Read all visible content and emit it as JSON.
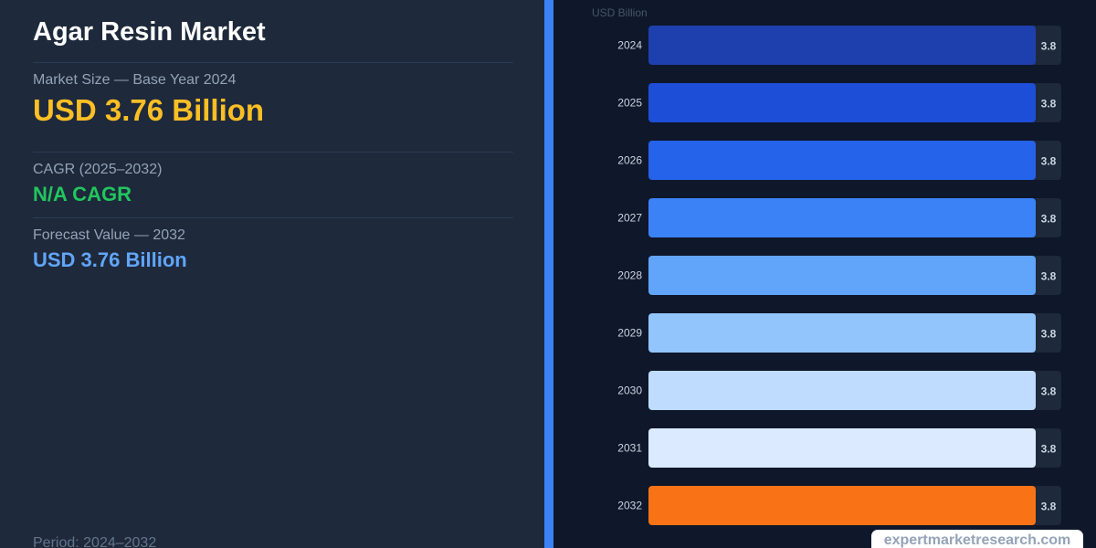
{
  "header": {
    "title": "Agar Resin Market"
  },
  "stats": {
    "base_label": "Market Size — Base Year 2024",
    "base_value": "USD 3.76 Billion",
    "cagr_label": "CAGR (2025–2032)",
    "cagr_value": "N/A CAGR",
    "forecast_label": "Forecast Value — 2032",
    "forecast_value": "USD 3.76 Billion",
    "period": "Period: 2024–2032"
  },
  "colors": {
    "base_value": "#fbbf24",
    "cagr_value": "#22c55e",
    "forecast_value": "#60a5fa",
    "label_box": "#1e293b",
    "year_text": "#cbd5e1",
    "value_text": "#cbd5e1",
    "unit_text": "#475569"
  },
  "chart_data": {
    "type": "bar",
    "orientation": "horizontal",
    "unit_label": "USD Billion",
    "categories": [
      "2024",
      "2025",
      "2026",
      "2027",
      "2028",
      "2029",
      "2030",
      "2031",
      "2032"
    ],
    "values": [
      3.76,
      3.76,
      3.76,
      3.76,
      3.76,
      3.76,
      3.76,
      3.76,
      3.76
    ],
    "data_labels": [
      "3.8",
      "3.8",
      "3.8",
      "3.8",
      "3.8",
      "3.8",
      "3.8",
      "3.8",
      "3.8"
    ],
    "bar_colors": [
      "#1e40af",
      "#1d4ed8",
      "#2563eb",
      "#3b82f6",
      "#60a5fa",
      "#93c5fd",
      "#bfdbfe",
      "#dbeafe",
      "#f97316"
    ],
    "xlim": [
      0,
      3.76
    ],
    "grid": false,
    "legend": "none"
  },
  "footer": {
    "watermark": "expertmarketresearch.com"
  }
}
